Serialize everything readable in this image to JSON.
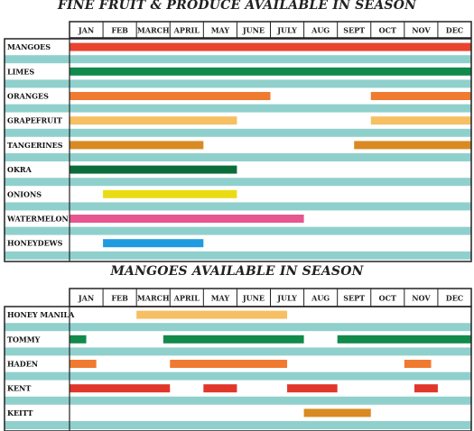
{
  "chart_data": [
    {
      "type": "gantt",
      "title": "FINE FRUIT & PRODUCE AVAILABLE IN SEASON",
      "months": [
        "JAN",
        "FEB",
        "MARCH",
        "APRIL",
        "MAY",
        "JUNE",
        "JULY",
        "AUG",
        "SEPT",
        "OCT",
        "NOV",
        "DEC"
      ],
      "rows": [
        {
          "label": "MANGOES",
          "color": "#e8442e",
          "spans": [
            [
              1,
              13
            ]
          ]
        },
        {
          "label": "LIMES",
          "color": "#118a4b",
          "spans": [
            [
              1,
              13
            ]
          ]
        },
        {
          "label": "ORANGES",
          "color": "#f07a30",
          "spans": [
            [
              1,
              7
            ],
            [
              10,
              13
            ]
          ]
        },
        {
          "label": "GRAPEFRUIT",
          "color": "#f6bf63",
          "spans": [
            [
              1,
              6
            ],
            [
              10,
              13
            ]
          ]
        },
        {
          "label": "TANGERINES",
          "color": "#d98a22",
          "spans": [
            [
              1,
              5
            ],
            [
              9.5,
              13
            ]
          ]
        },
        {
          "label": "OKRA",
          "color": "#0b6e3a",
          "spans": [
            [
              1,
              6
            ]
          ]
        },
        {
          "label": "ONIONS",
          "color": "#eadc14",
          "spans": [
            [
              2,
              6
            ]
          ]
        },
        {
          "label": "WATERMELONS",
          "color": "#e6568f",
          "spans": [
            [
              1,
              8
            ]
          ]
        },
        {
          "label": "HONEYDEWS",
          "color": "#1f9be0",
          "spans": [
            [
              2,
              5
            ]
          ]
        }
      ]
    },
    {
      "type": "gantt",
      "title": "MANGOES AVAILABLE IN SEASON",
      "months": [
        "JAN",
        "FEB",
        "MARCH",
        "APRIL",
        "MAY",
        "JUNE",
        "JULY",
        "AUG",
        "SEPT",
        "OCT",
        "NOV",
        "DEC"
      ],
      "rows": [
        {
          "label": "HONEY MANILA",
          "color": "#f6bf63",
          "spans": [
            [
              3,
              7.5
            ]
          ]
        },
        {
          "label": "TOMMY",
          "color": "#118a4b",
          "spans": [
            [
              1,
              1.5
            ],
            [
              3.8,
              8
            ],
            [
              9,
              13
            ]
          ]
        },
        {
          "label": "HADEN",
          "color": "#f07a30",
          "spans": [
            [
              1,
              1.8
            ],
            [
              4,
              7.5
            ],
            [
              11,
              11.8
            ]
          ]
        },
        {
          "label": "KENT",
          "color": "#e0372a",
          "spans": [
            [
              1,
              4
            ],
            [
              5,
              6
            ],
            [
              7.5,
              9
            ],
            [
              11.3,
              12
            ]
          ]
        },
        {
          "label": "KEITT",
          "color": "#d98a22",
          "spans": [
            [
              8,
              10
            ]
          ]
        }
      ]
    }
  ]
}
